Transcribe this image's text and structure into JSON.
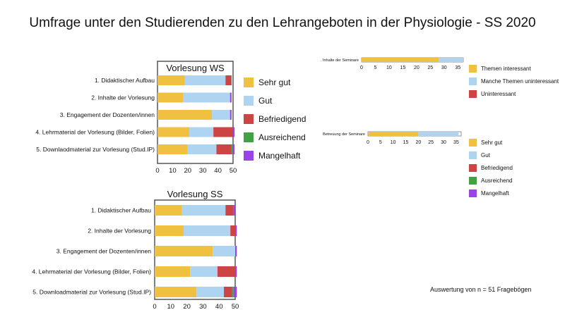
{
  "title": "Umfrage unter den Studierenden zu den Lehrangeboten in der Physiologie - SS 2020",
  "footnote": "Auswertung von n = 51 Fragebögen",
  "colors": {
    "sehr_gut": "#f0c040",
    "gut": "#aed4f2",
    "befriedigend": "#cc4444",
    "ausreichend": "#44a044",
    "mangelhaft": "#9b44e6",
    "themen_interessant": "#f0c040",
    "manche_themen": "#aed4f2",
    "uninteressant": "#cc4444"
  },
  "legend_grades": [
    "Sehr gut",
    "Gut",
    "Befriedigend",
    "Ausreichend",
    "Mangelhaft"
  ],
  "legend_seminar": [
    "Themen interessant",
    "Manche Themen uninteressant",
    "Uninteressant"
  ],
  "chart_data": [
    {
      "type": "bar",
      "orientation": "horizontal",
      "stacked": true,
      "title": "Vorlesung WS",
      "categories": [
        "1. Didaktischer Aufbau",
        "2. Inhalte der Vorlesung",
        "3. Engagement der Dozenten/innen",
        "4. Lehrmaterial der Vorlesung (Bilder, Folien)",
        "5. Downlaodmaterial zur Vorlesung (Stud.IP)"
      ],
      "series": [
        {
          "name": "Sehr gut",
          "color": "#f0c040",
          "values": [
            18,
            17,
            36,
            21,
            20
          ]
        },
        {
          "name": "Gut",
          "color": "#aed4f2",
          "values": [
            27,
            31,
            12,
            16,
            19
          ]
        },
        {
          "name": "Befriedigend",
          "color": "#cc4444",
          "values": [
            4,
            0,
            0,
            13,
            10
          ]
        },
        {
          "name": "Ausreichend",
          "color": "#44a044",
          "values": [
            0,
            0,
            0,
            0,
            1
          ]
        },
        {
          "name": "Mangelhaft",
          "color": "#9b44e6",
          "values": [
            0,
            1,
            1,
            1,
            1
          ]
        }
      ],
      "xlim": [
        0,
        50
      ],
      "xticks": [
        0,
        10,
        20,
        30,
        40,
        50
      ]
    },
    {
      "type": "bar",
      "orientation": "horizontal",
      "stacked": true,
      "title": "Vorlesung SS",
      "categories": [
        "1. Didaktischer Aufbau",
        "2. Inhalte der Vorlesung",
        "3. Engagement der Dozenten/innen",
        "4. Lehrmaterial der Vorlesung (Bilder, Folien)",
        "5. Downloadmaterial zur Vorlesung (Stud.IP)"
      ],
      "series": [
        {
          "name": "Sehr gut",
          "color": "#f0c040",
          "values": [
            17,
            18,
            36,
            22,
            26
          ]
        },
        {
          "name": "Gut",
          "color": "#aed4f2",
          "values": [
            27,
            29,
            14,
            17,
            17
          ]
        },
        {
          "name": "Befriedigend",
          "color": "#cc4444",
          "values": [
            5,
            3,
            0,
            11,
            5
          ]
        },
        {
          "name": "Ausreichend",
          "color": "#44a044",
          "values": [
            0,
            0,
            0,
            0,
            1
          ]
        },
        {
          "name": "Mangelhaft",
          "color": "#9b44e6",
          "values": [
            1,
            1,
            1,
            1,
            2
          ]
        }
      ],
      "xlim": [
        0,
        50
      ],
      "xticks": [
        0,
        10,
        20,
        30,
        40,
        50
      ]
    },
    {
      "type": "bar",
      "orientation": "horizontal",
      "stacked": true,
      "categories": [
        ". Inhalte der Seminare"
      ],
      "series": [
        {
          "name": "Themen interessant",
          "color": "#f0c040",
          "values": [
            28
          ]
        },
        {
          "name": "Manche Themen uninteressant",
          "color": "#aed4f2",
          "values": [
            9
          ]
        },
        {
          "name": "Uninteressant",
          "color": "#cc4444",
          "values": [
            0
          ]
        }
      ],
      "xlim": [
        0,
        37
      ],
      "xticks": [
        0,
        5,
        10,
        15,
        20,
        25,
        30,
        35
      ]
    },
    {
      "type": "bar",
      "orientation": "horizontal",
      "stacked": true,
      "categories": [
        "Betreuung der Seminare"
      ],
      "series": [
        {
          "name": "Sehr gut",
          "color": "#f0c040",
          "values": [
            20
          ]
        },
        {
          "name": "Gut",
          "color": "#aed4f2",
          "values": [
            16
          ]
        },
        {
          "name": "Befriedigend",
          "color": "#cc4444",
          "values": [
            0
          ]
        },
        {
          "name": "Ausreichend",
          "color": "#44a044",
          "values": [
            0
          ]
        },
        {
          "name": "Mangelhaft",
          "color": "#9b44e6",
          "values": [
            0
          ]
        }
      ],
      "xlim": [
        0,
        37
      ],
      "xticks": [
        0,
        5,
        10,
        15,
        20,
        25,
        30,
        35
      ]
    }
  ]
}
